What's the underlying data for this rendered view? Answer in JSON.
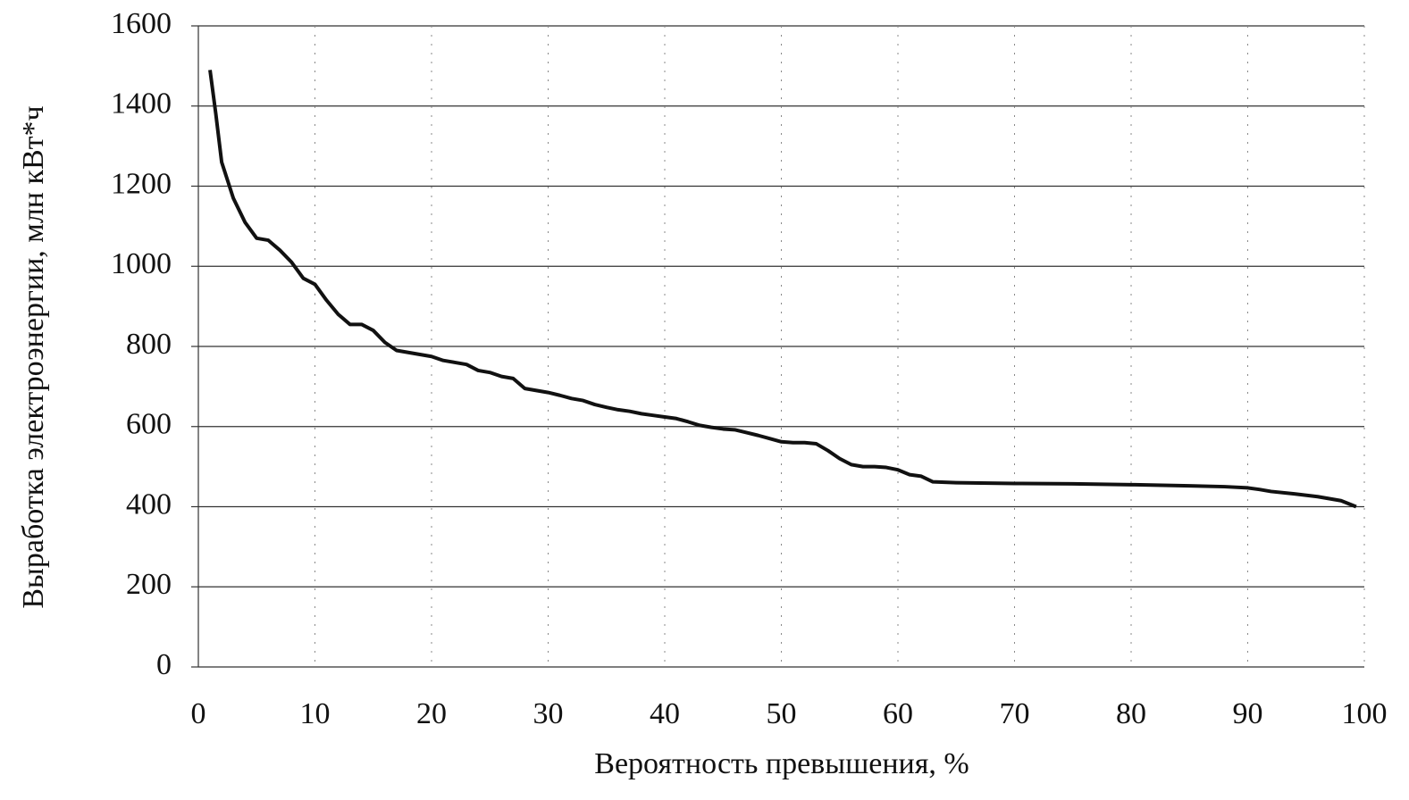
{
  "chart_data": {
    "type": "line",
    "xlabel": "Вероятность превышения, %",
    "ylabel": "Выработка электроэнергии, млн кВт*ч",
    "x": [
      1,
      1.5,
      2,
      3,
      4,
      5,
      6,
      7,
      8,
      9,
      10,
      11,
      12,
      13,
      14,
      15,
      16,
      17,
      18,
      19,
      20,
      21,
      22,
      23,
      24,
      25,
      26,
      27,
      28,
      29,
      30,
      31,
      32,
      33,
      34,
      35,
      36,
      37,
      38,
      39,
      40,
      41,
      42,
      43,
      44,
      45,
      46,
      47,
      48,
      49,
      50,
      51,
      52,
      53,
      54,
      55,
      56,
      57,
      58,
      59,
      60,
      61,
      62,
      63,
      65,
      70,
      75,
      80,
      85,
      88,
      90,
      91,
      92,
      94,
      96,
      98,
      99.3
    ],
    "values": [
      1490,
      1380,
      1260,
      1170,
      1110,
      1070,
      1065,
      1040,
      1010,
      970,
      955,
      915,
      880,
      855,
      855,
      840,
      810,
      790,
      785,
      780,
      775,
      765,
      760,
      755,
      740,
      735,
      725,
      720,
      695,
      690,
      685,
      678,
      670,
      665,
      655,
      648,
      642,
      638,
      632,
      628,
      624,
      620,
      612,
      603,
      598,
      594,
      592,
      585,
      578,
      570,
      562,
      560,
      560,
      557,
      540,
      520,
      505,
      500,
      500,
      498,
      492,
      480,
      476,
      462,
      460,
      458,
      457,
      455,
      452,
      450,
      447,
      443,
      438,
      432,
      425,
      415,
      400
    ],
    "color": "#111111",
    "xlim": [
      0,
      100
    ],
    "xticks": [
      0,
      10,
      20,
      30,
      40,
      50,
      60,
      70,
      80,
      90,
      100
    ],
    "ylim": [
      0,
      1600
    ],
    "yticks": [
      0,
      200,
      400,
      600,
      800,
      1000,
      1200,
      1400,
      1600
    ],
    "grid": true
  }
}
